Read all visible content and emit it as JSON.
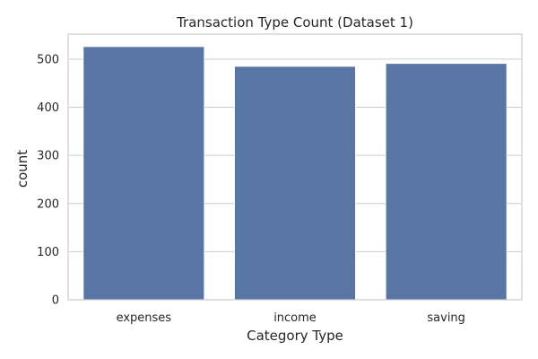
{
  "chart_data": {
    "type": "bar",
    "title": "Transaction Type Count (Dataset 1)",
    "xlabel": "Category Type",
    "ylabel": "count",
    "categories": [
      "expenses",
      "income",
      "saving"
    ],
    "values": [
      526,
      485,
      491
    ],
    "ylim": [
      0,
      552
    ],
    "yticks": [
      0,
      100,
      200,
      300,
      400,
      500
    ],
    "grid": true,
    "colors": {
      "bar": "#5975a4"
    }
  }
}
